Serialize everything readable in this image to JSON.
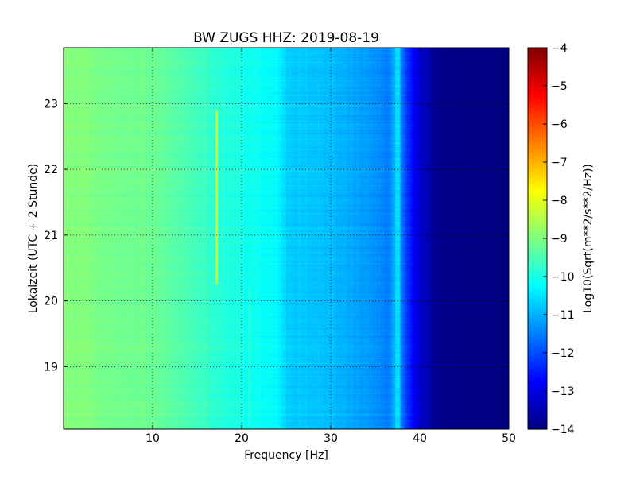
{
  "chart_data": {
    "type": "heatmap",
    "title": "BW ZUGS HHZ: 2019-08-19",
    "xlabel": "Frequency [Hz]",
    "ylabel": "Lokalzeit (UTC + 2 Stunde)",
    "xlim": [
      0,
      50
    ],
    "ylim": [
      23.85,
      18.05
    ],
    "x_ticks": [
      10,
      20,
      30,
      40,
      50
    ],
    "x_tick_labels": [
      "10",
      "20",
      "30",
      "40",
      "50"
    ],
    "y_ticks": [
      19,
      20,
      21,
      22,
      23
    ],
    "y_tick_labels": [
      "19",
      "20",
      "21",
      "22",
      "23"
    ],
    "grid": true,
    "colormap": "jet",
    "colorbar": {
      "label": "Log10(Sqrt(m**2/s**2/Hz))",
      "range": [
        -14,
        -4
      ],
      "ticks": [
        -4,
        -5,
        -6,
        -7,
        -8,
        -9,
        -10,
        -11,
        -12,
        -13,
        -14
      ],
      "tick_labels": [
        "−4",
        "−5",
        "−6",
        "−7",
        "−8",
        "−9",
        "−10",
        "−11",
        "−12",
        "−13",
        "−14"
      ]
    },
    "features": {
      "base_profile_hz": [
        0,
        5,
        10,
        14,
        18,
        21,
        24,
        25,
        30,
        35,
        36.5,
        37.5,
        38.5,
        40,
        42,
        50
      ],
      "base_profile_log10": [
        -8.9,
        -9.1,
        -9.2,
        -9.5,
        -9.9,
        -10.1,
        -10.3,
        -10.7,
        -10.9,
        -11.3,
        -11.5,
        -10.8,
        -12.2,
        -13.2,
        -13.9,
        -14.0
      ],
      "line_17hz": {
        "frequency_hz": 17.2,
        "time_start": 20.25,
        "time_end": 22.9,
        "level": -8.3
      },
      "line_21hz": {
        "frequency_hz": 20.8,
        "time_start": 18.1,
        "time_end": 20.2,
        "level": -9.9
      },
      "line_37_5hz": {
        "frequency_hz": 37.5,
        "time_start": 18.05,
        "time_end": 23.85,
        "level": -10.6
      }
    }
  }
}
